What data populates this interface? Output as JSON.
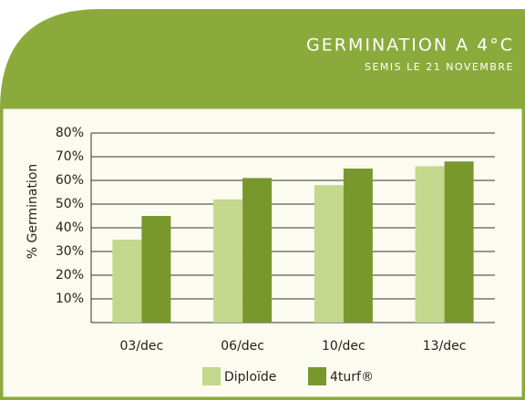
{
  "chart_data": {
    "type": "bar",
    "title": "GERMINATION A 4°C",
    "subtitle": "SEMIS LE 21 NOVEMBRE",
    "y_label": "% Germination",
    "categories": [
      "03/dec",
      "06/dec",
      "10/dec",
      "13/dec"
    ],
    "series": [
      {
        "name": "Diploïde",
        "color": "#c3d88c",
        "values": [
          35,
          52,
          58,
          66
        ]
      },
      {
        "name": "4turf®",
        "color": "#78982e",
        "values": [
          45,
          61,
          65,
          68
        ]
      }
    ],
    "ylim": [
      0,
      80
    ],
    "yticks": [
      {
        "value": 10,
        "label": "10%"
      },
      {
        "value": 20,
        "label": "20%"
      },
      {
        "value": 30,
        "label": "30%"
      },
      {
        "value": 40,
        "label": "40%"
      },
      {
        "value": 50,
        "label": "50%"
      },
      {
        "value": 60,
        "label": "60%"
      },
      {
        "value": 70,
        "label": "70%"
      },
      {
        "value": 80,
        "label": "80%"
      }
    ],
    "grid": true,
    "legend": "bottom"
  }
}
